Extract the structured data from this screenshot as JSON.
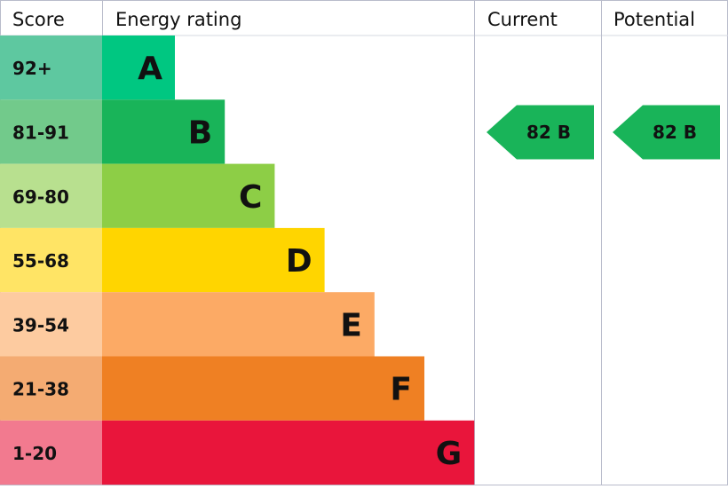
{
  "chart_data": {
    "type": "bar",
    "headers": {
      "score": "Score",
      "rating": "Energy rating",
      "current": "Current",
      "potential": "Potential"
    },
    "bands": [
      {
        "score": "92+",
        "letter": "A",
        "color": "#00c781",
        "score_bg": "#5ec8a0"
      },
      {
        "score": "81-91",
        "letter": "B",
        "color": "#19b459",
        "score_bg": "#72ca8b"
      },
      {
        "score": "69-80",
        "letter": "C",
        "color": "#8dce46",
        "score_bg": "#b8e08f"
      },
      {
        "score": "55-68",
        "letter": "D",
        "color": "#ffd500",
        "score_bg": "#ffe465"
      },
      {
        "score": "39-54",
        "letter": "E",
        "color": "#fcaa65",
        "score_bg": "#fdcba0"
      },
      {
        "score": "21-38",
        "letter": "F",
        "color": "#ef8023",
        "score_bg": "#f4ab72"
      },
      {
        "score": "1-20",
        "letter": "G",
        "color": "#e9153b",
        "score_bg": "#f27a8f"
      }
    ],
    "current": {
      "value": 82,
      "band": "B",
      "label": "82 B",
      "color": "#19b459"
    },
    "potential": {
      "value": 82,
      "band": "B",
      "label": "82 B",
      "color": "#19b459"
    }
  }
}
